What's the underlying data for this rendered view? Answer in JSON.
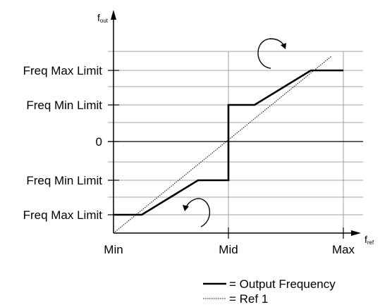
{
  "y_axis": {
    "main": "f",
    "sub": "out"
  },
  "x_axis": {
    "main": "f",
    "sub": "ref"
  },
  "y_ticks": [
    "Freq Max Limit",
    "Freq Min Limit",
    "0",
    "Freq Min Limit",
    "Freq Max Limit"
  ],
  "x_ticks": [
    "Min",
    "Mid",
    "Max"
  ],
  "legend": [
    {
      "style": "solid",
      "label": "= Output Frequency"
    },
    {
      "style": "dotted",
      "label": "= Ref 1"
    }
  ]
}
